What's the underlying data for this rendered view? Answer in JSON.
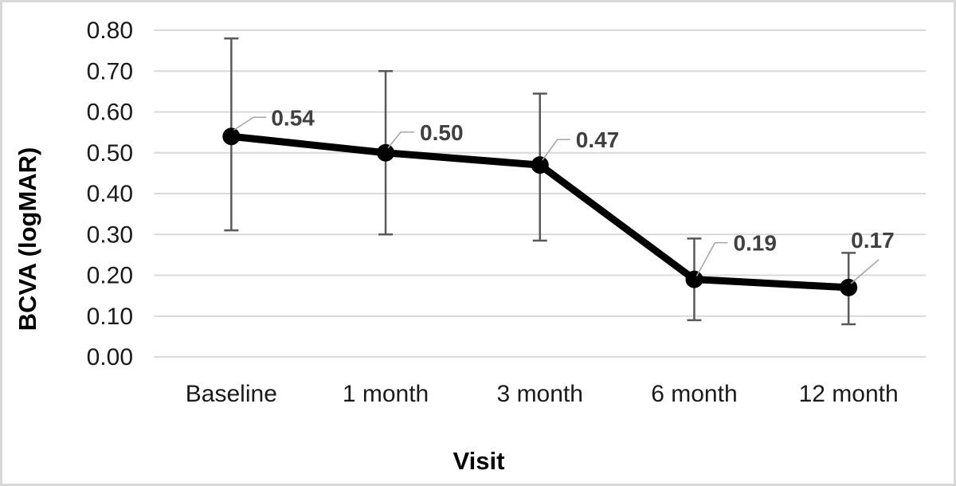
{
  "chart_data": {
    "type": "line",
    "title": "",
    "xlabel": "Visit",
    "ylabel": "BCVA (logMAR)",
    "categories": [
      "Baseline",
      "1 month",
      "3 month",
      "6 month",
      "12 month"
    ],
    "series": [
      {
        "name": "BCVA (logMAR)",
        "values": [
          0.54,
          0.5,
          0.47,
          0.19,
          0.17
        ],
        "data_labels": [
          "0.54",
          "0.50",
          "0.47",
          "0.19",
          "0.17"
        ],
        "error_upper": [
          0.78,
          0.7,
          0.645,
          0.29,
          0.255
        ],
        "error_lower": [
          0.31,
          0.3,
          0.285,
          0.09,
          0.08
        ]
      }
    ],
    "y_ticks": [
      "0.80",
      "0.70",
      "0.60",
      "0.50",
      "0.40",
      "0.30",
      "0.20",
      "0.10",
      "0.00"
    ],
    "ylim": [
      0.0,
      0.8
    ],
    "grid": true,
    "legend": false,
    "colors": {
      "series_line": "#000000",
      "marker": "#000000",
      "error_bar": "#595959",
      "gridline": "#d9d9d9",
      "leader_line": "#a6a6a6",
      "data_label": "#404040",
      "tick_label": "#1a1a1a",
      "axis_title": "#000000",
      "frame_border": "#d8d8d8",
      "background": "#ffffff"
    }
  }
}
